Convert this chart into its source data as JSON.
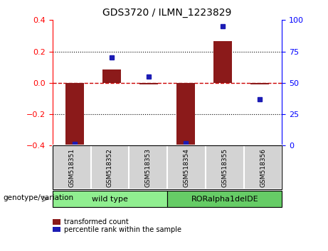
{
  "title": "GDS3720 / ILMN_1223829",
  "samples": [
    "GSM518351",
    "GSM518352",
    "GSM518353",
    "GSM518354",
    "GSM518355",
    "GSM518356"
  ],
  "red_bars": [
    -0.415,
    0.085,
    -0.01,
    -0.4,
    0.265,
    -0.01
  ],
  "blue_dots": [
    1.5,
    70,
    55,
    2,
    95,
    37
  ],
  "ylim_left": [
    -0.4,
    0.4
  ],
  "ylim_right": [
    0,
    100
  ],
  "yticks_left": [
    -0.4,
    -0.2,
    0,
    0.2,
    0.4
  ],
  "yticks_right": [
    0,
    25,
    50,
    75,
    100
  ],
  "group1_label": "wild type",
  "group1_color": "#90EE90",
  "group2_label": "RORalpha1delDE",
  "group2_color": "#66CC66",
  "bar_color": "#8B1A1A",
  "dot_color": "#1C1CB4",
  "zero_line_color": "#CC0000",
  "grid_color": "#000000",
  "legend_red_label": "transformed count",
  "legend_blue_label": "percentile rank within the sample",
  "genotype_label": "genotype/variation",
  "bg_color": "#FFFFFF",
  "plot_bg": "#FFFFFF",
  "sample_bg": "#D3D3D3"
}
